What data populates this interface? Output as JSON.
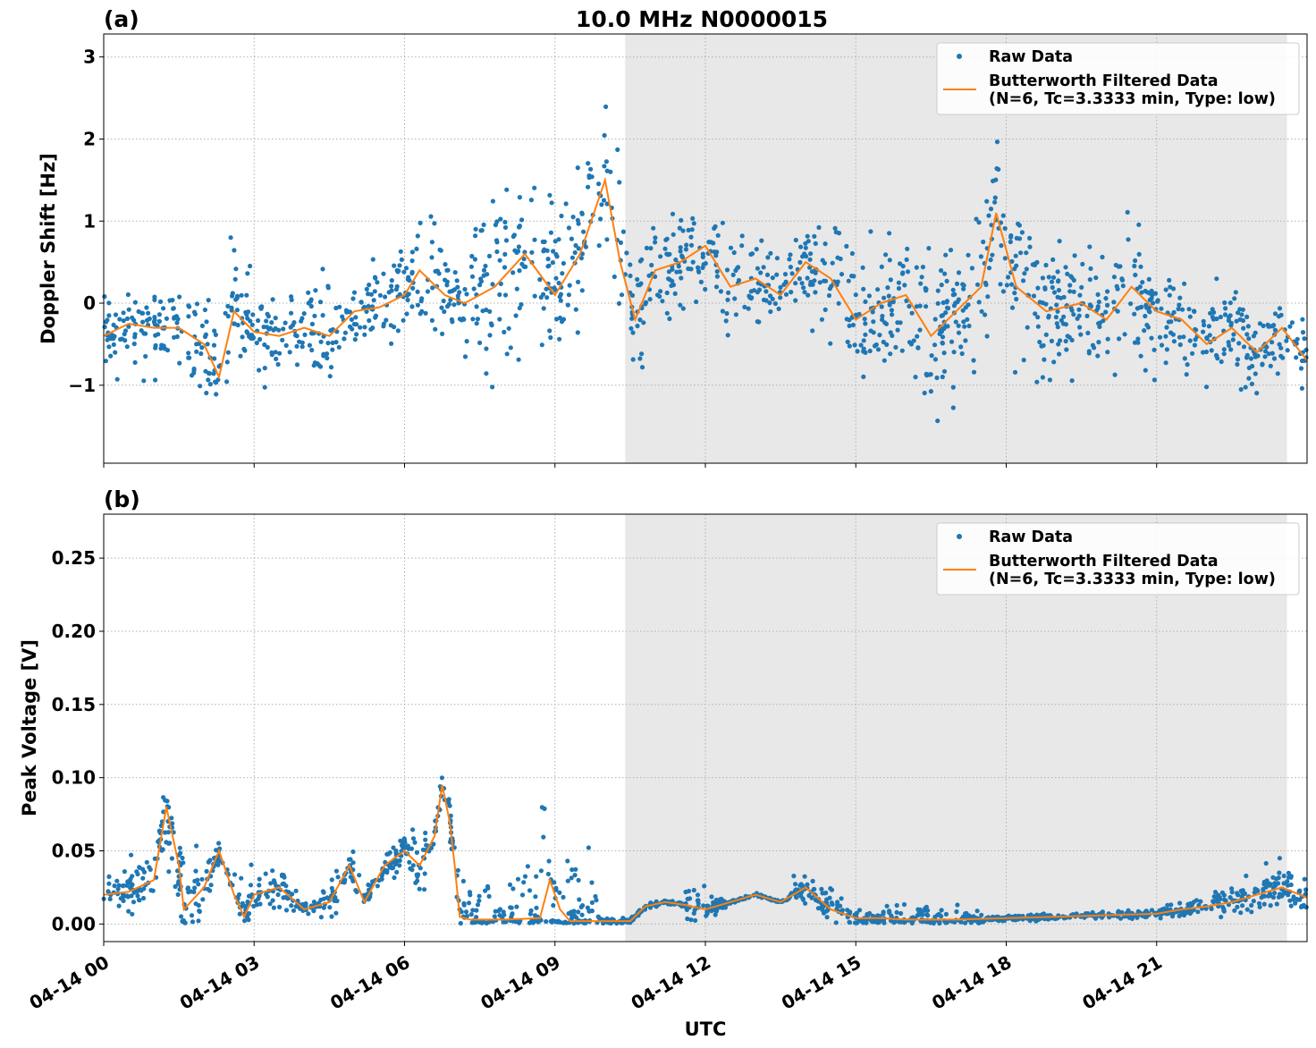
{
  "figure": {
    "title": "10.0 MHz N0000015",
    "xlabel": "UTC"
  },
  "colors": {
    "raw": "#1f77b4",
    "filtered": "#ff7f0e",
    "shade": "#e8e8e8",
    "grid": "#b0b0b0"
  },
  "chart_data": [
    {
      "type": "scatter",
      "panel_label": "(a)",
      "ylabel": "Doppler Shift [Hz]",
      "x_unit": "hours UTC on 04-14",
      "xlim": [
        0,
        24
      ],
      "ylim": [
        -1.95,
        3.28
      ],
      "yticks": [
        3,
        2,
        1,
        0,
        -1
      ],
      "ytick_labels": [
        "3",
        "2",
        "1",
        "0",
        "−1"
      ],
      "xticks": [
        0,
        3,
        6,
        9,
        12,
        15,
        18,
        21
      ],
      "xtick_labels": [
        "04-14 00",
        "04-14 03",
        "04-14 06",
        "04-14 09",
        "04-14 12",
        "04-14 15",
        "04-14 18",
        "04-14 21"
      ],
      "grid": true,
      "shaded_interval": [
        10.4,
        23.6
      ],
      "legend": {
        "position": "top-right",
        "raw_label": "Raw Data",
        "filtered_label_line1": "Butterworth Filtered Data",
        "filtered_label_line2": "(N=6, Tc=3.3333 min, Type: low)"
      },
      "filtered_series": {
        "name": "Butterworth Filtered Data",
        "x": [
          0,
          0.5,
          1.0,
          1.5,
          2.0,
          2.3,
          2.6,
          3.0,
          3.5,
          4.0,
          4.5,
          5.0,
          5.5,
          6.0,
          6.3,
          6.8,
          7.2,
          7.8,
          8.4,
          9.0,
          9.5,
          10.0,
          10.3,
          10.6,
          11.0,
          11.5,
          12.0,
          12.5,
          13.0,
          13.5,
          14.0,
          14.5,
          15.0,
          15.5,
          16.0,
          16.5,
          17.0,
          17.5,
          17.8,
          18.2,
          18.8,
          19.5,
          20.0,
          20.5,
          21.0,
          21.5,
          22.0,
          22.5,
          23.0,
          23.5,
          24.0
        ],
        "y": [
          -0.4,
          -0.25,
          -0.3,
          -0.3,
          -0.5,
          -0.9,
          -0.1,
          -0.35,
          -0.4,
          -0.3,
          -0.4,
          -0.1,
          -0.05,
          0.1,
          0.4,
          0.1,
          0.0,
          0.2,
          0.6,
          0.1,
          0.6,
          1.5,
          0.5,
          -0.2,
          0.4,
          0.5,
          0.7,
          0.2,
          0.3,
          0.1,
          0.5,
          0.3,
          -0.2,
          0.0,
          0.1,
          -0.4,
          -0.1,
          0.2,
          1.1,
          0.2,
          -0.1,
          0.0,
          -0.2,
          0.2,
          -0.1,
          -0.2,
          -0.5,
          -0.3,
          -0.6,
          -0.3,
          -0.7
        ]
      },
      "raw_series": {
        "name": "Raw Data",
        "spread_hz": [
          0.35,
          0.4,
          0.45,
          0.5,
          0.6,
          0.7,
          0.65,
          0.55,
          0.55,
          0.5,
          0.5,
          0.45,
          0.55,
          0.7,
          0.8,
          0.95,
          1.0,
          1.0,
          0.95,
          0.8,
          1.0,
          1.1,
          0.75,
          0.65,
          0.55,
          0.5,
          0.5,
          0.55,
          0.45,
          0.45,
          0.55,
          0.65,
          0.8,
          0.85,
          0.9,
          0.85,
          0.8,
          0.85,
          0.9,
          0.8,
          0.7,
          0.7,
          0.7,
          0.7,
          0.65,
          0.55,
          0.5,
          0.5,
          0.5,
          0.45,
          0.4
        ]
      }
    },
    {
      "type": "scatter",
      "panel_label": "(b)",
      "ylabel": "Peak Voltage [V]",
      "x_unit": "hours UTC on 04-14",
      "xlim": [
        0,
        24
      ],
      "ylim": [
        -0.012,
        0.28
      ],
      "yticks": [
        0.25,
        0.2,
        0.15,
        0.1,
        0.05,
        0.0
      ],
      "ytick_labels": [
        "0.25",
        "0.20",
        "0.15",
        "0.10",
        "0.05",
        "0.00"
      ],
      "xticks": [
        0,
        3,
        6,
        9,
        12,
        15,
        18,
        21
      ],
      "xtick_labels": [
        "04-14 00",
        "04-14 03",
        "04-14 06",
        "04-14 09",
        "04-14 12",
        "04-14 15",
        "04-14 18",
        "04-14 21"
      ],
      "grid": true,
      "shaded_interval": [
        10.4,
        23.6
      ],
      "legend": {
        "position": "top-right",
        "raw_label": "Raw Data",
        "filtered_label_line1": "Butterworth Filtered Data",
        "filtered_label_line2": "(N=6, Tc=3.3333 min, Type: low)"
      },
      "filtered_series": {
        "name": "Butterworth Filtered Data",
        "x": [
          0,
          0.5,
          1.0,
          1.25,
          1.5,
          1.6,
          2.0,
          2.3,
          2.6,
          2.8,
          3.0,
          3.5,
          4.0,
          4.5,
          4.9,
          5.2,
          5.6,
          6.0,
          6.3,
          6.6,
          6.75,
          6.9,
          7.0,
          7.1,
          7.3,
          8.0,
          8.7,
          8.9,
          9.1,
          9.3,
          10.0,
          10.5,
          10.8,
          11.2,
          11.6,
          12.0,
          12.5,
          13.0,
          13.5,
          14.0,
          14.5,
          15.0,
          15.5,
          16.0,
          16.5,
          17.0,
          18.0,
          19.0,
          20.0,
          21.0,
          21.5,
          22.0,
          22.5,
          23.0,
          23.5,
          24.0
        ],
        "y": [
          0.02,
          0.022,
          0.03,
          0.08,
          0.04,
          0.01,
          0.025,
          0.05,
          0.02,
          0.005,
          0.02,
          0.025,
          0.01,
          0.015,
          0.04,
          0.015,
          0.04,
          0.05,
          0.04,
          0.06,
          0.095,
          0.07,
          0.04,
          0.005,
          0.003,
          0.003,
          0.004,
          0.03,
          0.01,
          0.002,
          0.002,
          0.002,
          0.012,
          0.015,
          0.013,
          0.01,
          0.015,
          0.02,
          0.015,
          0.025,
          0.01,
          0.004,
          0.004,
          0.003,
          0.003,
          0.003,
          0.004,
          0.005,
          0.006,
          0.007,
          0.01,
          0.012,
          0.015,
          0.02,
          0.025,
          0.018
        ]
      },
      "raw_series": {
        "name": "Raw Data",
        "spread_v": [
          0.012,
          0.015,
          0.02,
          0.03,
          0.02,
          0.008,
          0.015,
          0.02,
          0.012,
          0.004,
          0.012,
          0.015,
          0.008,
          0.01,
          0.02,
          0.01,
          0.02,
          0.03,
          0.03,
          0.04,
          0.05,
          0.04,
          0.03,
          0.003,
          0.002,
          0.002,
          0.002,
          0.015,
          0.006,
          0.001,
          0.001,
          0.001,
          0.008,
          0.01,
          0.008,
          0.006,
          0.01,
          0.012,
          0.01,
          0.015,
          0.006,
          0.002,
          0.002,
          0.002,
          0.002,
          0.002,
          0.002,
          0.003,
          0.003,
          0.004,
          0.006,
          0.007,
          0.009,
          0.012,
          0.015,
          0.012
        ]
      }
    }
  ]
}
